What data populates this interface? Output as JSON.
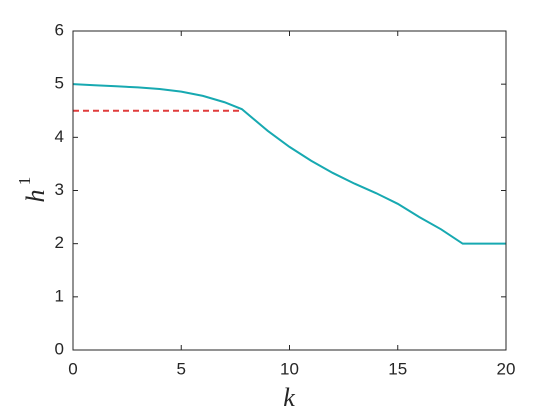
{
  "chart_data": {
    "type": "line",
    "xlabel": "k",
    "ylabel": "h",
    "ylabel_superscript": "1",
    "xlim": [
      0,
      20
    ],
    "ylim": [
      0,
      6
    ],
    "xticks": [
      0,
      5,
      10,
      15,
      20
    ],
    "yticks": [
      0,
      1,
      2,
      3,
      4,
      5,
      6
    ],
    "grid": false,
    "box": true,
    "series": [
      {
        "color": "#17a9b1",
        "dash": false,
        "x": [
          0,
          1,
          2,
          3,
          4,
          5,
          6,
          7,
          7.8,
          9,
          10,
          11,
          12,
          13,
          14,
          15,
          16,
          17,
          18,
          19,
          20
        ],
        "values": [
          5.0,
          4.98,
          4.96,
          4.94,
          4.91,
          4.86,
          4.78,
          4.66,
          4.53,
          4.12,
          3.82,
          3.56,
          3.33,
          3.13,
          2.95,
          2.75,
          2.5,
          2.27,
          2.0,
          2.0,
          2.0
        ]
      },
      {
        "color": "#e03c3c",
        "dash": true,
        "x": [
          0,
          7.8
        ],
        "values": [
          4.5,
          4.5
        ]
      }
    ]
  }
}
